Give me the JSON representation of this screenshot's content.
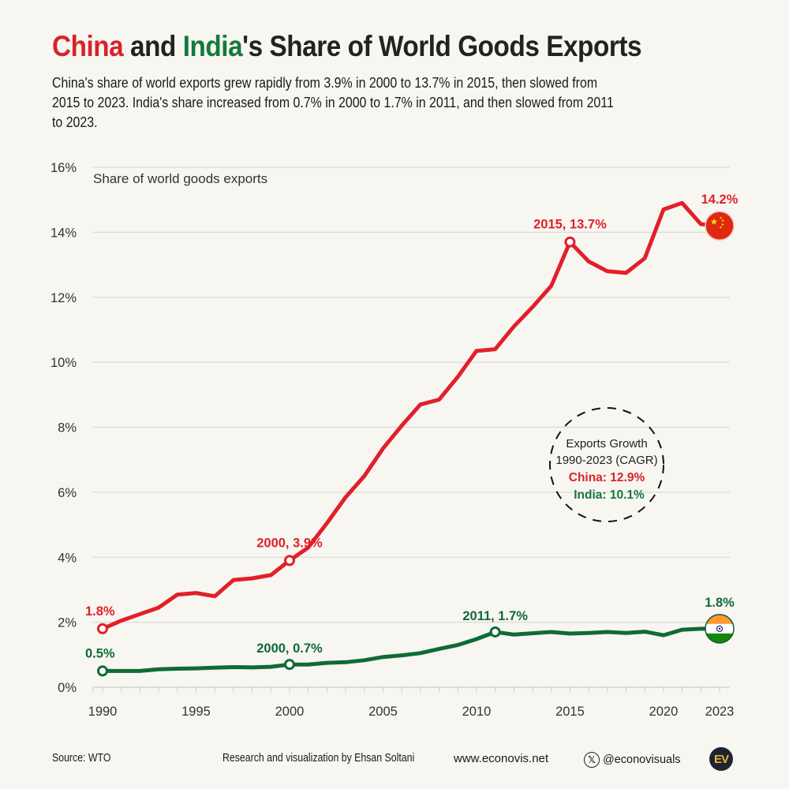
{
  "header": {
    "title_china": "China",
    "title_and": " and ",
    "title_india": "India",
    "title_rest": "'s Share of World Goods Exports",
    "subtitle": "China's share of world exports grew rapidly from 3.9% in 2000 to 13.7% in 2015, then slowed from 2015 to 2023. India's share increased from 0.7% in 2000 to 1.7% in 2011, and then slowed from 2011 to 2023."
  },
  "colors": {
    "china": "#e0202a",
    "india": "#0f6b35",
    "background": "#f8f6f1",
    "grid": "#dcdad5",
    "text": "#333333"
  },
  "chart_data": {
    "type": "line",
    "title": "China and India's Share of World Goods Exports",
    "ylabel": "Share of world goods exports",
    "xlabel": "",
    "xlim": [
      1990,
      2023
    ],
    "ylim": [
      0,
      16
    ],
    "grid": true,
    "yticks": [
      0,
      2,
      4,
      6,
      8,
      10,
      12,
      14,
      16
    ],
    "ytick_labels": [
      "0%",
      "2%",
      "4%",
      "6%",
      "8%",
      "10%",
      "12%",
      "14%",
      "16%"
    ],
    "xticks": [
      1990,
      1995,
      2000,
      2005,
      2010,
      2015,
      2020,
      2023
    ],
    "xtick_labels": [
      "1990",
      "1995",
      "2000",
      "2005",
      "2010",
      "2015",
      "2020",
      "2023"
    ],
    "x": [
      1990,
      1991,
      1992,
      1993,
      1994,
      1995,
      1996,
      1997,
      1998,
      1999,
      2000,
      2001,
      2002,
      2003,
      2004,
      2005,
      2006,
      2007,
      2008,
      2009,
      2010,
      2011,
      2012,
      2013,
      2014,
      2015,
      2016,
      2017,
      2018,
      2019,
      2020,
      2021,
      2022,
      2023
    ],
    "series": [
      {
        "name": "China",
        "color": "#e0202a",
        "values": [
          1.8,
          2.05,
          2.25,
          2.45,
          2.85,
          2.9,
          2.8,
          3.3,
          3.35,
          3.45,
          3.9,
          4.3,
          5.05,
          5.85,
          6.5,
          7.35,
          8.05,
          8.7,
          8.85,
          9.55,
          10.35,
          10.4,
          11.1,
          11.7,
          12.35,
          13.7,
          13.1,
          12.8,
          12.75,
          13.2,
          14.7,
          14.9,
          14.25,
          14.2
        ]
      },
      {
        "name": "India",
        "color": "#0f6b35",
        "values": [
          0.5,
          0.5,
          0.5,
          0.55,
          0.57,
          0.58,
          0.6,
          0.62,
          0.61,
          0.63,
          0.7,
          0.7,
          0.75,
          0.77,
          0.83,
          0.93,
          0.98,
          1.05,
          1.18,
          1.3,
          1.48,
          1.7,
          1.62,
          1.66,
          1.7,
          1.65,
          1.67,
          1.7,
          1.67,
          1.71,
          1.6,
          1.77,
          1.8,
          1.8
        ]
      }
    ],
    "annotations": [
      {
        "series": "China",
        "x": 1990,
        "y": 1.8,
        "text": "1.8%",
        "marker": true
      },
      {
        "series": "China",
        "x": 2000,
        "y": 3.9,
        "text": "2000, 3.9%",
        "marker": true
      },
      {
        "series": "China",
        "x": 2015,
        "y": 13.7,
        "text": "2015, 13.7%",
        "marker": true
      },
      {
        "series": "China",
        "x": 2023,
        "y": 14.2,
        "text": "14.2%",
        "marker": false,
        "flag": "china-flag"
      },
      {
        "series": "India",
        "x": 1990,
        "y": 0.5,
        "text": "0.5%",
        "marker": true
      },
      {
        "series": "India",
        "x": 2000,
        "y": 0.7,
        "text": "2000, 0.7%",
        "marker": true
      },
      {
        "series": "India",
        "x": 2011,
        "y": 1.7,
        "text": "2011, 1.7%",
        "marker": true
      },
      {
        "series": "India",
        "x": 2023,
        "y": 1.8,
        "text": "1.8%",
        "marker": false,
        "flag": "india-flag"
      }
    ],
    "callout": {
      "line1": "Exports Growth",
      "line2": "1990-2023 (CAGR)",
      "china": "China: 12.9%",
      "india": "India: 10.1%"
    }
  },
  "footer": {
    "source": "Source: WTO",
    "credit": "Research and visualization by Ehsan Soltani",
    "website": "www.econovis.net",
    "x_icon": "x-logo-icon",
    "x_handle": "@econovisuals",
    "logo_text": "EV"
  }
}
